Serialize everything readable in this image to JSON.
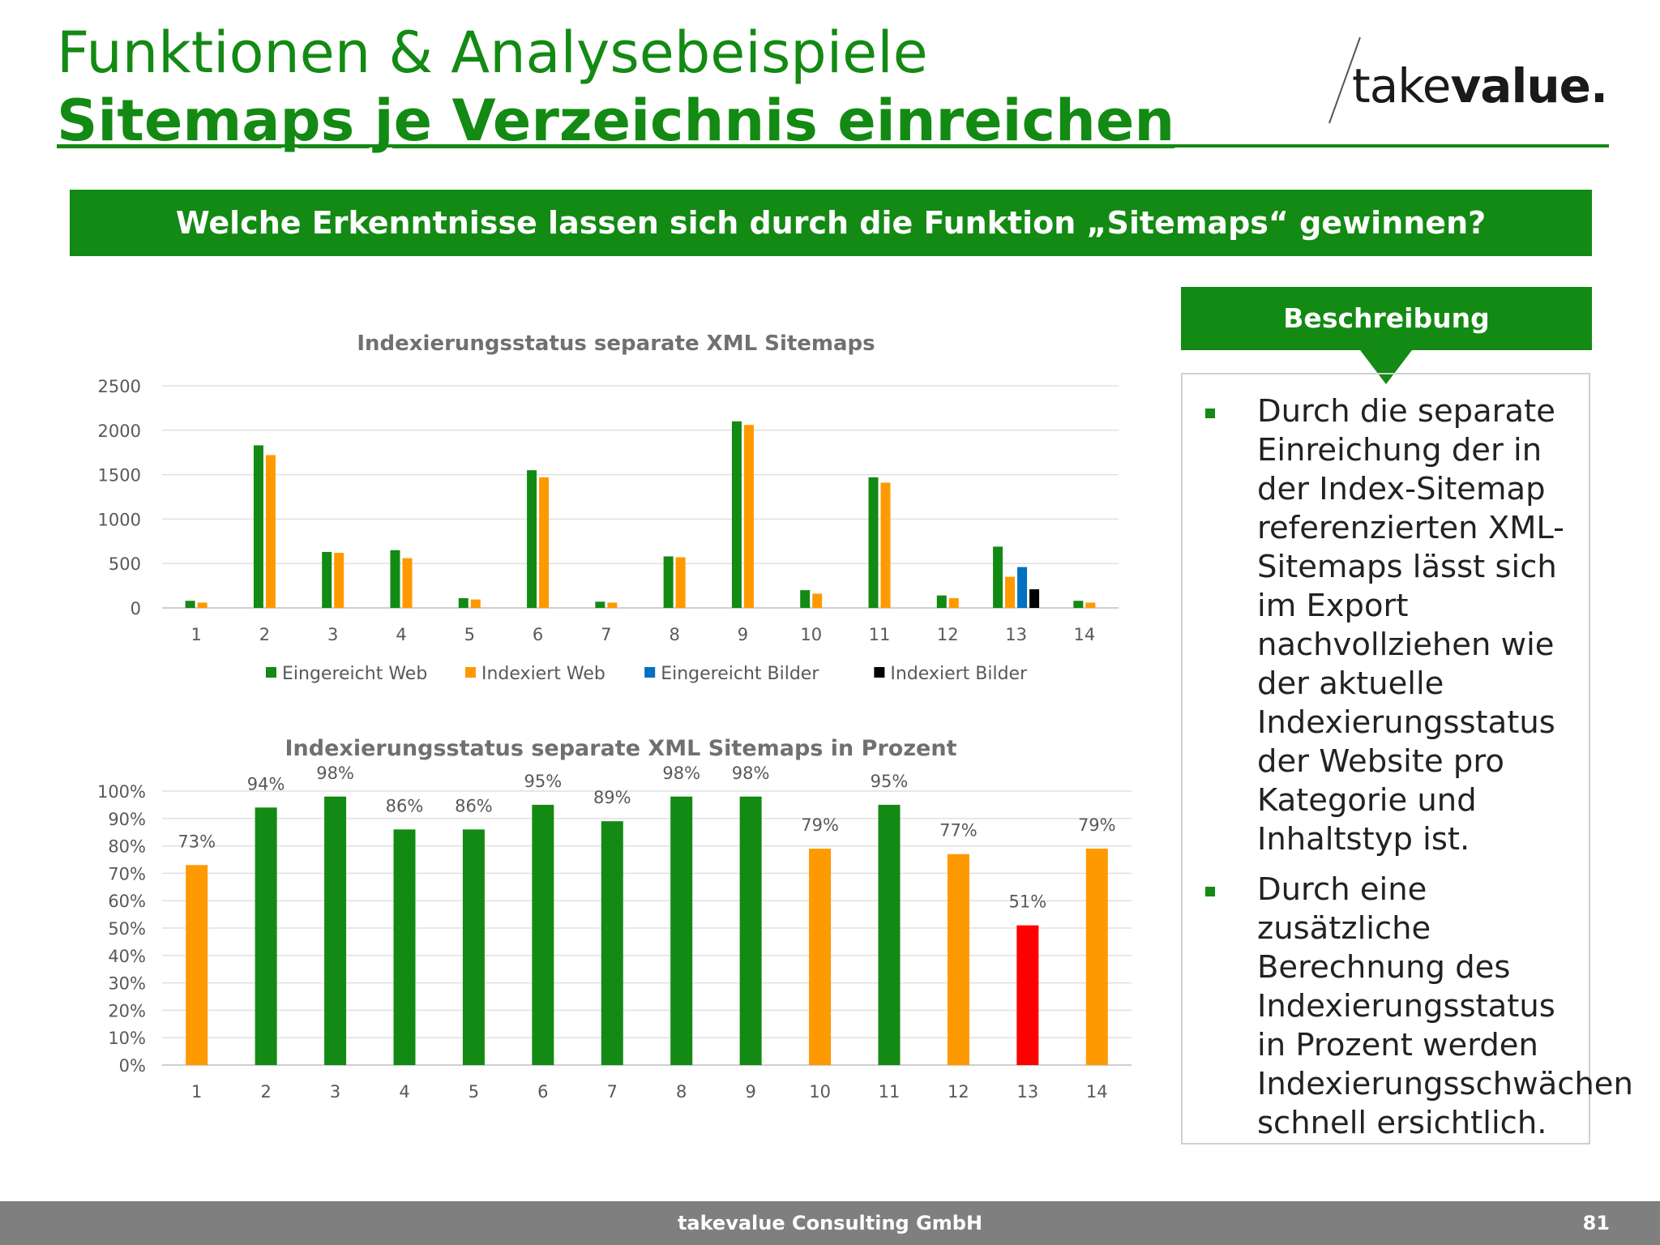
{
  "header": {
    "title_line1": "Funktionen & Analysebeispiele",
    "title_line2": "Sitemaps je Verzeichnis einreichen",
    "logo_text_regular": "take",
    "logo_text_bold": "value."
  },
  "banner": {
    "question": "Welche Erkenntnisse lassen sich durch die Funktion „Sitemaps“ gewinnen?"
  },
  "description": {
    "heading": "Beschreibung",
    "bullets": [
      "Durch die separate Einreichung der in der Index-Sitemap referenzierten XML-Sitemaps lässt sich im Export nachvollziehen wie der aktuelle Indexierungsstatus der Website pro Kategorie und Inhaltstyp ist.",
      "Durch eine zusätzliche Berechnung des Indexierungsstatus in Prozent werden Indexierungsschwächen schnell ersichtlich."
    ]
  },
  "colors": {
    "brand_green": "#138a13",
    "web_submitted": "#138a13",
    "web_indexed": "#ff9900",
    "images_submitted": "#0070c0",
    "images_indexed": "#000000",
    "pct_good": "#138a13",
    "pct_medium": "#ff9900",
    "pct_bad": "#ff0000"
  },
  "chart_data": [
    {
      "type": "bar",
      "title": "Indexierungsstatus separate XML Sitemaps",
      "categories": [
        "1",
        "2",
        "3",
        "4",
        "5",
        "6",
        "7",
        "8",
        "9",
        "10",
        "11",
        "12",
        "13",
        "14"
      ],
      "ylim": [
        0,
        2500
      ],
      "yticks": [
        "0",
        "500",
        "1000",
        "1500",
        "2000",
        "2500"
      ],
      "grid": true,
      "legend": "bottom",
      "series": [
        {
          "name": "Eingereicht Web",
          "color": "#138a13",
          "values": [
            80,
            1830,
            630,
            650,
            110,
            1550,
            70,
            580,
            2100,
            200,
            1470,
            140,
            690,
            80
          ]
        },
        {
          "name": "Indexiert Web",
          "color": "#ff9900",
          "values": [
            60,
            1720,
            620,
            560,
            95,
            1470,
            60,
            570,
            2060,
            160,
            1410,
            110,
            350,
            60
          ]
        },
        {
          "name": "Eingereicht Bilder",
          "color": "#0070c0",
          "values": [
            null,
            null,
            null,
            null,
            null,
            null,
            null,
            null,
            null,
            null,
            null,
            null,
            460,
            null
          ]
        },
        {
          "name": "Indexiert Bilder",
          "color": "#000000",
          "values": [
            null,
            null,
            null,
            null,
            null,
            null,
            null,
            null,
            null,
            null,
            null,
            null,
            210,
            null
          ]
        }
      ]
    },
    {
      "type": "bar",
      "title": "Indexierungsstatus separate XML Sitemaps in Prozent",
      "categories": [
        "1",
        "2",
        "3",
        "4",
        "5",
        "6",
        "7",
        "8",
        "9",
        "10",
        "11",
        "12",
        "13",
        "14"
      ],
      "values": [
        73,
        94,
        98,
        86,
        86,
        95,
        89,
        98,
        98,
        79,
        95,
        77,
        51,
        79
      ],
      "labels": [
        "73%",
        "94%",
        "98%",
        "86%",
        "86%",
        "95%",
        "89%",
        "98%",
        "98%",
        "79%",
        "95%",
        "77%",
        "51%",
        "79%"
      ],
      "bar_colors": [
        "#ff9900",
        "#138a13",
        "#138a13",
        "#138a13",
        "#138a13",
        "#138a13",
        "#138a13",
        "#138a13",
        "#138a13",
        "#ff9900",
        "#138a13",
        "#ff9900",
        "#ff0000",
        "#ff9900"
      ],
      "ylim": [
        0,
        100
      ],
      "yticks": [
        "0%",
        "10%",
        "20%",
        "30%",
        "40%",
        "50%",
        "60%",
        "70%",
        "80%",
        "90%",
        "100%"
      ],
      "grid": true
    }
  ],
  "footer": {
    "company": "takevalue Consulting GmbH",
    "page": "81"
  }
}
